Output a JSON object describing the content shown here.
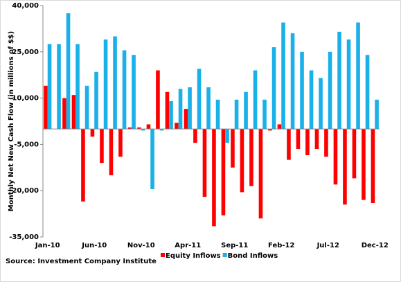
{
  "chart_data": {
    "type": "bar",
    "y_label": "Monthly Net New Cash Flow (in millions of $$)",
    "source": "Source: Investment Company Institute",
    "categories": [
      "Jan-10",
      null,
      null,
      null,
      null,
      "Jun-10",
      null,
      null,
      null,
      null,
      "Nov-10",
      null,
      null,
      null,
      null,
      "Apr-11",
      null,
      null,
      null,
      null,
      "Sep-11",
      null,
      null,
      null,
      null,
      "Feb-12",
      null,
      null,
      null,
      null,
      "Jul-12",
      null,
      null,
      null,
      null,
      "Dec-12"
    ],
    "series": [
      {
        "name": "Equity Inflows",
        "color": "#ff0000",
        "values": [
          14000,
          0,
          10000,
          11000,
          -23500,
          -2500,
          -11000,
          -15000,
          -9000,
          500,
          500,
          1500,
          19000,
          12000,
          2000,
          6500,
          -4500,
          -22000,
          -31500,
          -28000,
          -12500,
          -20500,
          -18500,
          -29000,
          -500,
          1500,
          -10000,
          -6500,
          -8500,
          -6500,
          -9000,
          -18000,
          -24500,
          -16000,
          -23000,
          -24000
        ]
      },
      {
        "name": "Bond Inflows",
        "color": "#1ab0e8",
        "values": [
          27500,
          27500,
          37500,
          27500,
          14000,
          18500,
          29000,
          30000,
          25500,
          24000,
          -500,
          -19500,
          -500,
          9000,
          13000,
          13500,
          19500,
          13500,
          9500,
          -4500,
          9500,
          12000,
          19000,
          9500,
          26500,
          34500,
          31000,
          25000,
          19000,
          16500,
          25000,
          31500,
          29000,
          34500,
          24000,
          9500
        ]
      }
    ],
    "ylim": [
      -35000,
      40000
    ],
    "yticks": [
      {
        "value": -35000,
        "label": "-35,000"
      },
      {
        "value": -20000,
        "label": "-20,000"
      },
      {
        "value": -5000,
        "label": "-5,000"
      },
      {
        "value": 10000,
        "label": "10,000"
      },
      {
        "value": 25000,
        "label": "25,000"
      },
      {
        "value": 40000,
        "label": "40,000"
      }
    ],
    "legend": "bottom"
  }
}
